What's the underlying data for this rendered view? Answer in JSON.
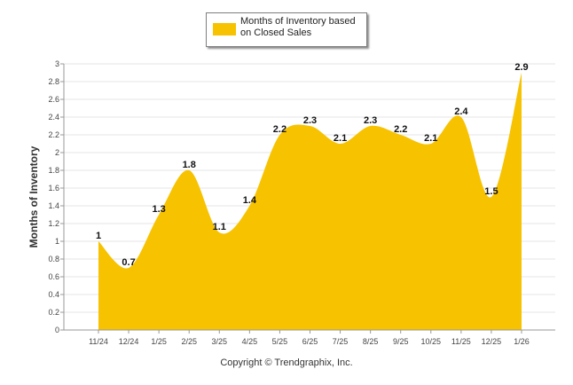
{
  "chart_data": {
    "type": "area",
    "categories": [
      "11/24",
      "12/24",
      "1/25",
      "2/25",
      "3/25",
      "4/25",
      "5/25",
      "6/25",
      "7/25",
      "8/25",
      "9/25",
      "10/25",
      "11/25",
      "12/25",
      "1/26"
    ],
    "series": [
      {
        "name": "Months of Inventory based on Closed Sales",
        "values": [
          1,
          0.7,
          1.3,
          1.8,
          1.1,
          1.4,
          2.2,
          2.3,
          2.1,
          2.3,
          2.2,
          2.1,
          2.4,
          1.5,
          2.9
        ],
        "data_labels": [
          "1",
          "0.7",
          "1.3",
          "1.8",
          "1.1",
          "1.4",
          "2.2",
          "2.3",
          "2.1",
          "2.3",
          "2.2",
          "2.1",
          "2.4",
          "1.5",
          "2.9"
        ]
      }
    ],
    "ylabel": "Months of Inventory",
    "xlabel": "",
    "ylim": [
      0,
      3
    ],
    "yticks": [
      "0",
      "0.2",
      "0.4",
      "0.6",
      "0.8",
      "1",
      "1.2",
      "1.4",
      "1.6",
      "1.8",
      "2",
      "2.2",
      "2.4",
      "2.6",
      "2.8",
      "3"
    ],
    "grid": true,
    "legend_position": "top-center",
    "colors": {
      "series": "#f7c200",
      "grid": "#e6e6e6",
      "axis": "#999999"
    }
  },
  "legend": {
    "label": "Months of Inventory based on Closed Sales"
  },
  "footer": {
    "copyright": "Copyright © Trendgraphix, Inc."
  }
}
